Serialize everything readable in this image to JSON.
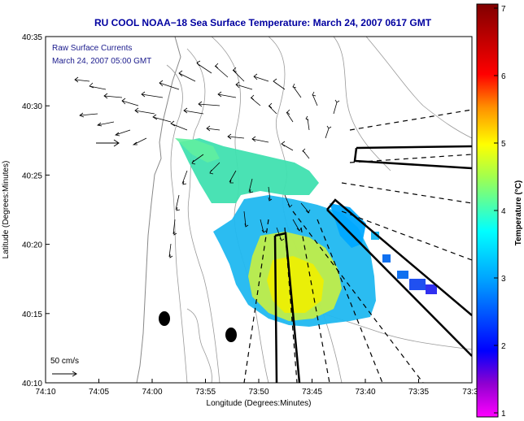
{
  "figure": {
    "title": "RU COOL  NOAA−18  Sea Surface Temperature:  March 24, 2007 0617 GMT",
    "title_color": "#0000A0",
    "legend_line1": "Raw Surface Currents",
    "legend_line2": "March 24, 2007 05:00 GMT",
    "legend_color": "#1A1A8C",
    "scale_arrow_label": "50 cm/s"
  },
  "chart_data": {
    "type": "heatmap",
    "title": "RU COOL  NOAA−18  Sea Surface Temperature:  March 24, 2007 0617 GMT",
    "xlabel": "Longitude (Degrees:Minutes)",
    "ylabel": "Latitude (Degrees:Minutes)",
    "x_ticks": [
      "74:10",
      "74:05",
      "74:00",
      "73:55",
      "73:50",
      "73:45",
      "73:40",
      "73:35",
      "73:3"
    ],
    "y_ticks": [
      "40:35",
      "40:30",
      "40:25",
      "40:20",
      "40:15",
      "40:10"
    ],
    "colorbar": {
      "label": "Temperature (°C)",
      "min": 1,
      "max": 7,
      "ticks": [
        "7",
        "6",
        "5",
        "4",
        "3",
        "2",
        "1"
      ]
    },
    "grid": false
  }
}
